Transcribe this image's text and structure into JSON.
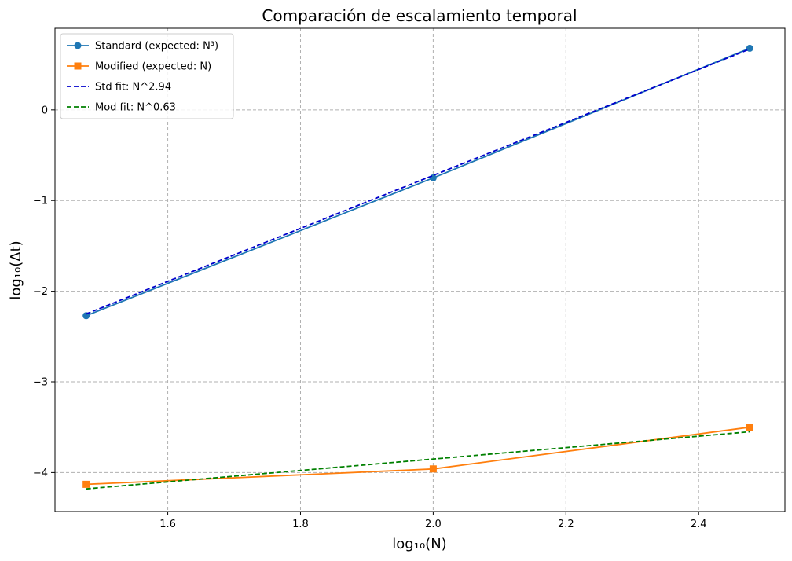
{
  "chart_data": {
    "type": "line",
    "title": "Comparación de escalamiento temporal",
    "xlabel": "log₁₀(N)",
    "ylabel": "log₁₀(Δt)",
    "xlim": [
      1.43,
      2.53
    ],
    "ylim": [
      -4.43,
      0.9
    ],
    "xticks": [
      1.6,
      1.8,
      2.0,
      2.2,
      2.4
    ],
    "yticks": [
      -4,
      -3,
      -2,
      -1,
      0
    ],
    "xtick_labels": [
      "1.6",
      "1.8",
      "2.0",
      "2.2",
      "2.4"
    ],
    "ytick_labels": [
      "−4",
      "−3",
      "−2",
      "−1",
      "0"
    ],
    "grid": true,
    "legend_position": "upper-left",
    "series": [
      {
        "name": "Standard (expected: N³)",
        "color": "#1f77b4",
        "style": "solid",
        "marker": "circle",
        "x": [
          1.477,
          2.0,
          2.477
        ],
        "y": [
          -2.27,
          -0.75,
          0.68
        ]
      },
      {
        "name": "Modified (expected: N)",
        "color": "#ff7f0e",
        "style": "solid",
        "marker": "square",
        "x": [
          1.477,
          2.0,
          2.477
        ],
        "y": [
          -4.13,
          -3.96,
          -3.5
        ]
      },
      {
        "name": "Std fit: N^2.94",
        "color": "#0000cc",
        "style": "dashed",
        "marker": "none",
        "x": [
          1.477,
          2.477
        ],
        "y": [
          -2.25,
          0.67
        ]
      },
      {
        "name": "Mod fit: N^0.63",
        "color": "#008000",
        "style": "dashed",
        "marker": "none",
        "x": [
          1.477,
          2.477
        ],
        "y": [
          -4.18,
          -3.55
        ]
      }
    ]
  }
}
